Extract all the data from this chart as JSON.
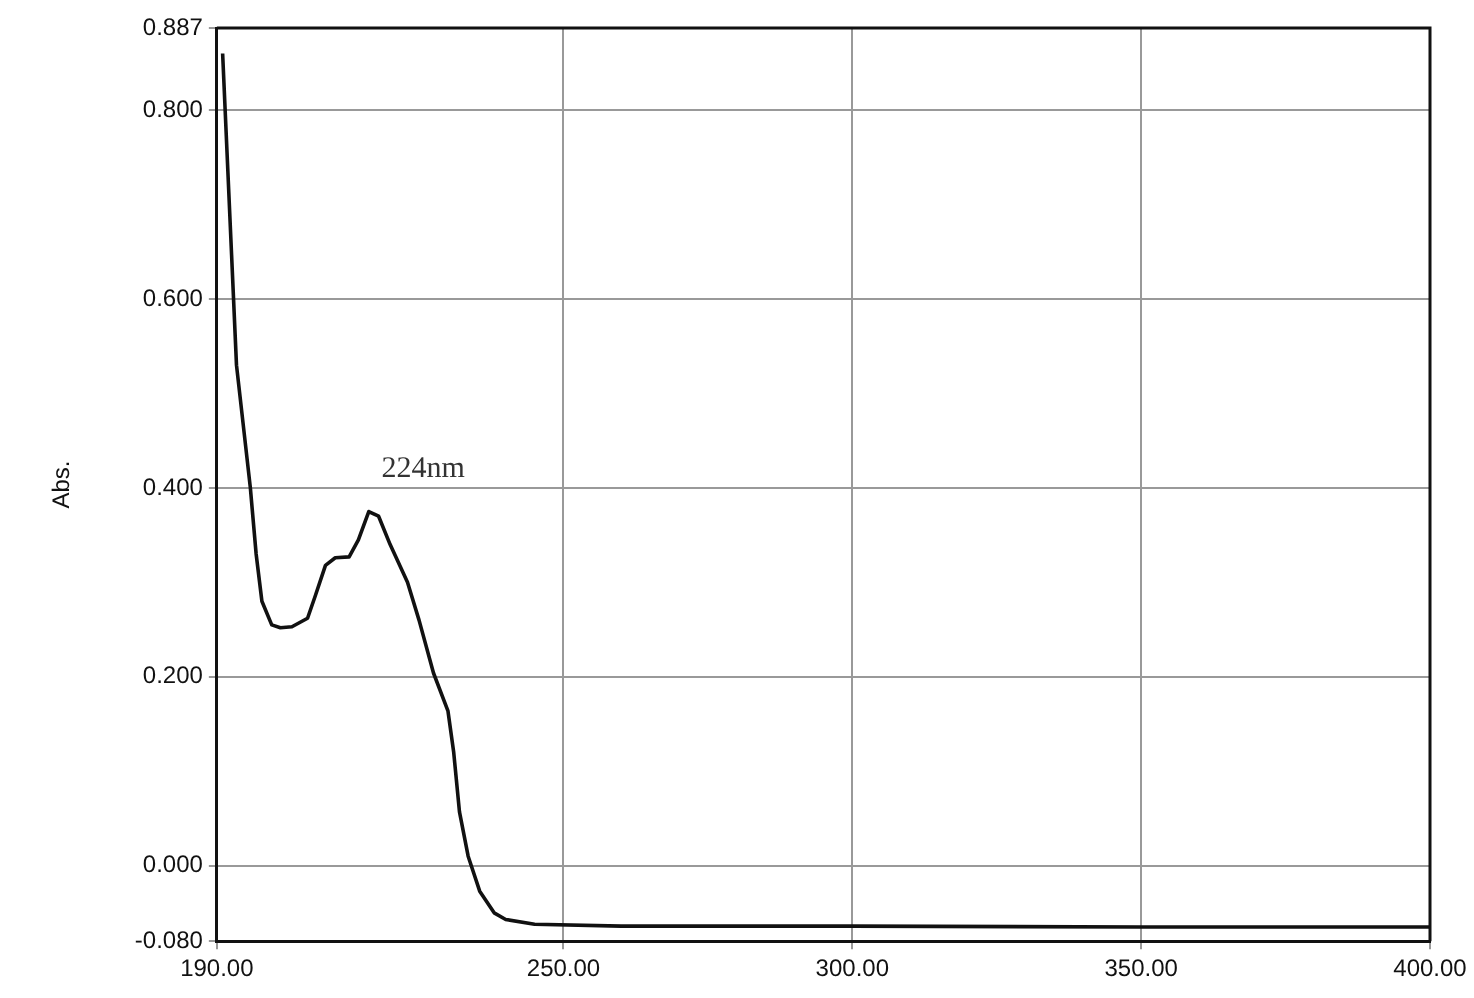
{
  "chart_data": {
    "type": "line",
    "ylabel": "Abs.",
    "annotations": [
      "224nm"
    ],
    "x": [
      191,
      193.4,
      195.8,
      196.8,
      197.8,
      199.5,
      201,
      203,
      205.7,
      207,
      208.8,
      210.5,
      212.9,
      214.5,
      216.3,
      218,
      220,
      223,
      225,
      227.5,
      230,
      231,
      232,
      233.5,
      235.5,
      238,
      240,
      245,
      260,
      300,
      350,
      400
    ],
    "series": [
      {
        "color": "#111111",
        "values": [
          0.86,
          0.53,
          0.4,
          0.33,
          0.28,
          0.255,
          0.252,
          0.253,
          0.262,
          0.285,
          0.318,
          0.326,
          0.327,
          0.345,
          0.375,
          0.37,
          0.34,
          0.3,
          0.26,
          0.204,
          0.164,
          0.12,
          0.057,
          0.01,
          -0.027,
          -0.05,
          -0.057,
          -0.062,
          -0.064,
          -0.064,
          -0.065,
          -0.065
        ]
      }
    ],
    "xlim": [
      190,
      400
    ],
    "xticks": [
      {
        "value": 190,
        "label": "190.00"
      },
      {
        "value": 250,
        "label": "250.00"
      },
      {
        "value": 300,
        "label": "300.00"
      },
      {
        "value": 350,
        "label": "350.00"
      },
      {
        "value": 400,
        "label": "400.00"
      }
    ],
    "ylim": [
      -0.08,
      0.887
    ],
    "yticks": [
      {
        "value": -0.08,
        "label": "-0.080"
      },
      {
        "value": 0,
        "label": "0.000"
      },
      {
        "value": 0.2,
        "label": "0.200"
      },
      {
        "value": 0.4,
        "label": "0.400"
      },
      {
        "value": 0.6,
        "label": "0.600"
      },
      {
        "value": 0.8,
        "label": "0.800"
      },
      {
        "value": 0.887,
        "label": "0.887"
      }
    ],
    "grid": true,
    "marker": "none",
    "line_style": "solid"
  }
}
